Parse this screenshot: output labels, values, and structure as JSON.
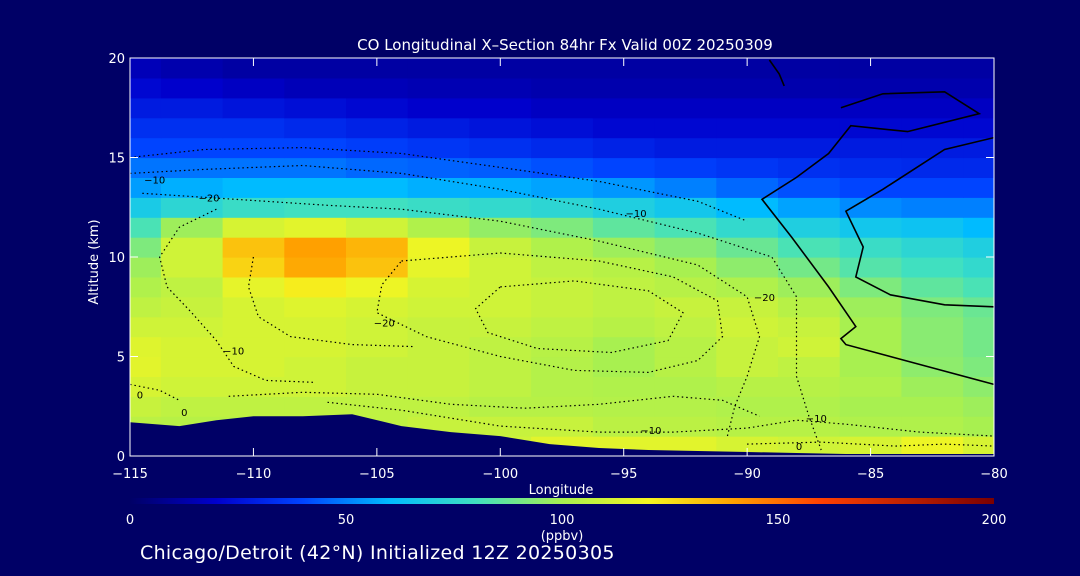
{
  "chart_data": {
    "type": "heatmap",
    "title": "CO Longitudinal X–Section 84hr  Fx Valid 00Z 20250309",
    "xlabel": "Longitude",
    "ylabel": "Altitude (km)",
    "xlim": [
      -115,
      -80
    ],
    "ylim": [
      0,
      20
    ],
    "x_ticks": [
      -115,
      -110,
      -105,
      -100,
      -95,
      -90,
      -85,
      -80
    ],
    "x_tick_labels": [
      "−115",
      "−110",
      "−105",
      "−100",
      "−95",
      "−90",
      "−85",
      "−80"
    ],
    "y_ticks": [
      0,
      5,
      10,
      15,
      20
    ],
    "colorbar": {
      "label": "(ppbv)",
      "range": [
        0,
        200
      ],
      "ticks": [
        0,
        50,
        100,
        150,
        200
      ]
    },
    "contour_labels": [
      {
        "text": "−10",
        "lon": -114.0,
        "alt": 13.7
      },
      {
        "text": "−20",
        "lon": -111.8,
        "alt": 12.8
      },
      {
        "text": "−10",
        "lon": -94.5,
        "alt": 12.0
      },
      {
        "text": "−20",
        "lon": -104.7,
        "alt": 6.5
      },
      {
        "text": "−10",
        "lon": -110.8,
        "alt": 5.1
      },
      {
        "text": "−20",
        "lon": -89.3,
        "alt": 7.8
      },
      {
        "text": "0",
        "lon": -114.6,
        "alt": 2.9
      },
      {
        "text": "0",
        "lon": -112.8,
        "alt": 2.0
      },
      {
        "text": "−10",
        "lon": -93.9,
        "alt": 1.1
      },
      {
        "text": "−10",
        "lon": -87.2,
        "alt": 1.7
      },
      {
        "text": "0",
        "lon": -87.9,
        "alt": 0.3
      }
    ],
    "co_field": {
      "lons": [
        -115,
        -112.5,
        -110,
        -107.5,
        -105,
        -102.5,
        -100,
        -97.5,
        -95,
        -92.5,
        -90,
        -87.5,
        -85,
        -82.5,
        -80
      ],
      "alts": [
        0.5,
        1.5,
        2.5,
        3.5,
        4.5,
        5.5,
        6.5,
        7.5,
        8.5,
        9.5,
        10.5,
        11.5,
        12.5,
        13.5,
        14.5,
        15.5,
        16.5,
        17.5,
        18.5,
        19.5
      ],
      "values": [
        [
          100,
          100,
          100,
          100,
          100,
          100,
          110,
          115,
          115,
          115,
          112,
          110,
          112,
          118,
          112
        ],
        [
          105,
          104,
          104,
          104,
          106,
          108,
          108,
          108,
          105,
          105,
          104,
          104,
          102,
          102,
          100
        ],
        [
          108,
          106,
          106,
          106,
          106,
          106,
          104,
          104,
          103,
          103,
          102,
          102,
          100,
          100,
          98
        ],
        [
          112,
          110,
          110,
          110,
          108,
          108,
          106,
          103,
          102,
          102,
          104,
          104,
          102,
          98,
          95
        ],
        [
          115,
          112,
          112,
          110,
          108,
          108,
          106,
          103,
          100,
          104,
          108,
          106,
          100,
          95,
          92
        ],
        [
          114,
          112,
          112,
          112,
          110,
          108,
          106,
          104,
          100,
          104,
          108,
          110,
          100,
          94,
          90
        ],
        [
          110,
          110,
          112,
          112,
          110,
          108,
          108,
          106,
          104,
          106,
          110,
          108,
          100,
          94,
          90
        ],
        [
          106,
          108,
          112,
          114,
          112,
          110,
          110,
          108,
          106,
          108,
          108,
          104,
          98,
          92,
          88
        ],
        [
          102,
          106,
          116,
          122,
          118,
          112,
          110,
          108,
          106,
          104,
          102,
          98,
          92,
          86,
          82
        ],
        [
          98,
          110,
          128,
          138,
          132,
          116,
          110,
          106,
          104,
          100,
          95,
          90,
          84,
          80,
          76
        ],
        [
          92,
          110,
          132,
          140,
          135,
          118,
          108,
          102,
          98,
          94,
          88,
          82,
          78,
          74,
          70
        ],
        [
          82,
          98,
          112,
          115,
          110,
          102,
          96,
          92,
          86,
          82,
          76,
          70,
          66,
          64,
          60
        ],
        [
          68,
          74,
          78,
          80,
          80,
          78,
          76,
          74,
          70,
          66,
          60,
          56,
          52,
          50,
          50
        ],
        [
          55,
          58,
          60,
          60,
          60,
          58,
          58,
          56,
          54,
          50,
          46,
          42,
          40,
          40,
          40
        ],
        [
          48,
          48,
          48,
          48,
          46,
          45,
          44,
          42,
          40,
          38,
          36,
          34,
          33,
          32,
          32
        ],
        [
          40,
          40,
          40,
          40,
          38,
          36,
          34,
          32,
          30,
          28,
          28,
          28,
          28,
          28,
          28
        ],
        [
          34,
          34,
          34,
          32,
          30,
          28,
          26,
          24,
          22,
          22,
          22,
          22,
          22,
          22,
          22
        ],
        [
          28,
          28,
          26,
          24,
          22,
          20,
          20,
          18,
          18,
          18,
          18,
          18,
          18,
          18,
          18
        ],
        [
          22,
          20,
          18,
          16,
          16,
          15,
          15,
          14,
          14,
          14,
          14,
          14,
          14,
          14,
          14
        ],
        [
          16,
          14,
          12,
          12,
          12,
          12,
          12,
          12,
          12,
          12,
          12,
          12,
          12,
          12,
          12
        ]
      ]
    },
    "terrain_km": [
      [
        -115,
        1.7
      ],
      [
        -113,
        1.5
      ],
      [
        -111.5,
        1.8
      ],
      [
        -110,
        2.0
      ],
      [
        -108,
        2.0
      ],
      [
        -106,
        2.1
      ],
      [
        -104,
        1.5
      ],
      [
        -102,
        1.2
      ],
      [
        -100,
        1.0
      ],
      [
        -98,
        0.6
      ],
      [
        -96,
        0.4
      ],
      [
        -94,
        0.3
      ],
      [
        -92,
        0.25
      ],
      [
        -90,
        0.2
      ],
      [
        -88,
        0.15
      ],
      [
        -86,
        0.1
      ],
      [
        -84,
        0.1
      ],
      [
        -82,
        0.1
      ],
      [
        -80,
        0.1
      ]
    ],
    "tropopause_lines": [
      [
        [
          -89.1,
          19.9
        ],
        [
          -88.7,
          19.2
        ],
        [
          -88.5,
          18.6
        ]
      ],
      [
        [
          -86.2,
          17.5
        ],
        [
          -84.5,
          18.2
        ],
        [
          -82.0,
          18.3
        ],
        [
          -80.6,
          17.2
        ],
        [
          -83.5,
          16.3
        ],
        [
          -85.8,
          16.6
        ],
        [
          -86.7,
          15.2
        ],
        [
          -88.0,
          14.0
        ],
        [
          -89.4,
          12.9
        ],
        [
          -88.2,
          11.0
        ],
        [
          -86.7,
          8.5
        ],
        [
          -85.6,
          6.5
        ],
        [
          -86.2,
          5.9
        ],
        [
          -86.0,
          5.6
        ],
        [
          -83.0,
          4.6
        ],
        [
          -80.0,
          3.6
        ]
      ],
      [
        [
          -80.0,
          16.0
        ],
        [
          -82.0,
          15.4
        ],
        [
          -84.5,
          13.4
        ],
        [
          -86.0,
          12.3
        ],
        [
          -85.3,
          10.5
        ],
        [
          -85.6,
          9.0
        ],
        [
          -84.2,
          8.1
        ],
        [
          -82.0,
          7.6
        ],
        [
          -80.0,
          7.5
        ]
      ]
    ],
    "dotted_contours": [
      [
        [
          -115,
          15.0
        ],
        [
          -112,
          15.4
        ],
        [
          -108,
          15.5
        ],
        [
          -104,
          15.2
        ],
        [
          -100,
          14.5
        ],
        [
          -96,
          13.8
        ],
        [
          -92,
          12.8
        ],
        [
          -90,
          11.8
        ]
      ],
      [
        [
          -115,
          14.2
        ],
        [
          -112,
          14.4
        ],
        [
          -108,
          14.6
        ],
        [
          -104,
          14.2
        ],
        [
          -100,
          13.4
        ],
        [
          -96,
          12.4
        ],
        [
          -92,
          11.2
        ],
        [
          -89,
          10.0
        ],
        [
          -88,
          8.0
        ],
        [
          -88,
          6.0
        ],
        [
          -88,
          4.0
        ],
        [
          -87.5,
          2.0
        ],
        [
          -87,
          0.3
        ]
      ],
      [
        [
          -114.5,
          13.2
        ],
        [
          -112,
          13.0
        ],
        [
          -109.5,
          12.8
        ],
        [
          -107,
          12.6
        ],
        [
          -104,
          12.4
        ],
        [
          -100,
          11.8
        ],
        [
          -96,
          10.8
        ],
        [
          -92,
          9.6
        ],
        [
          -90,
          8.0
        ],
        [
          -89.5,
          6.0
        ],
        [
          -90.0,
          4.0
        ],
        [
          -90.5,
          2.5
        ],
        [
          -90.8,
          1.0
        ]
      ],
      [
        [
          -111.5,
          12.4
        ],
        [
          -113.0,
          11.5
        ],
        [
          -113.8,
          10.0
        ],
        [
          -113.5,
          8.5
        ],
        [
          -112.5,
          7.2
        ],
        [
          -111.5,
          5.8
        ],
        [
          -110.8,
          4.5
        ],
        [
          -109.5,
          3.8
        ],
        [
          -107.5,
          3.7
        ]
      ],
      [
        [
          -104,
          9.8
        ],
        [
          -100,
          10.2
        ],
        [
          -96,
          9.8
        ],
        [
          -93,
          9.0
        ],
        [
          -91.2,
          7.8
        ],
        [
          -91.0,
          6.0
        ],
        [
          -92.0,
          4.8
        ],
        [
          -94,
          4.2
        ],
        [
          -97,
          4.3
        ],
        [
          -100,
          5.0
        ],
        [
          -103,
          6.0
        ],
        [
          -105,
          7.2
        ],
        [
          -104.8,
          8.6
        ],
        [
          -104,
          9.8
        ]
      ],
      [
        [
          -100,
          8.5
        ],
        [
          -97,
          8.8
        ],
        [
          -94,
          8.3
        ],
        [
          -92.6,
          7.2
        ],
        [
          -93.2,
          5.8
        ],
        [
          -95.5,
          5.2
        ],
        [
          -98.5,
          5.4
        ],
        [
          -100.5,
          6.2
        ],
        [
          -101.0,
          7.4
        ],
        [
          -100,
          8.5
        ]
      ],
      [
        [
          -110,
          10.0
        ],
        [
          -110.2,
          8.5
        ],
        [
          -109.8,
          7.0
        ],
        [
          -108.5,
          6.0
        ],
        [
          -106,
          5.6
        ],
        [
          -103.5,
          5.5
        ]
      ],
      [
        [
          -111,
          3.0
        ],
        [
          -108,
          3.2
        ],
        [
          -105,
          3.1
        ],
        [
          -102,
          2.6
        ],
        [
          -99,
          2.4
        ],
        [
          -96,
          2.6
        ],
        [
          -93,
          3.0
        ],
        [
          -91,
          2.8
        ],
        [
          -89.5,
          2.0
        ]
      ],
      [
        [
          -107,
          2.7
        ],
        [
          -104,
          2.3
        ],
        [
          -100,
          1.5
        ],
        [
          -96,
          1.2
        ],
        [
          -93,
          1.2
        ],
        [
          -90,
          1.4
        ],
        [
          -88,
          1.8
        ],
        [
          -86,
          1.6
        ],
        [
          -83,
          1.2
        ],
        [
          -80,
          1.0
        ]
      ],
      [
        [
          -115,
          3.6
        ],
        [
          -113.8,
          3.3
        ],
        [
          -113,
          2.8
        ]
      ],
      [
        [
          -90,
          0.6
        ],
        [
          -87,
          0.7
        ],
        [
          -84,
          0.5
        ],
        [
          -82,
          0.6
        ],
        [
          -80,
          0.5
        ]
      ]
    ]
  },
  "footer": {
    "text": "Chicago/Detroit (42°N) Initialized 12Z 20250305"
  }
}
